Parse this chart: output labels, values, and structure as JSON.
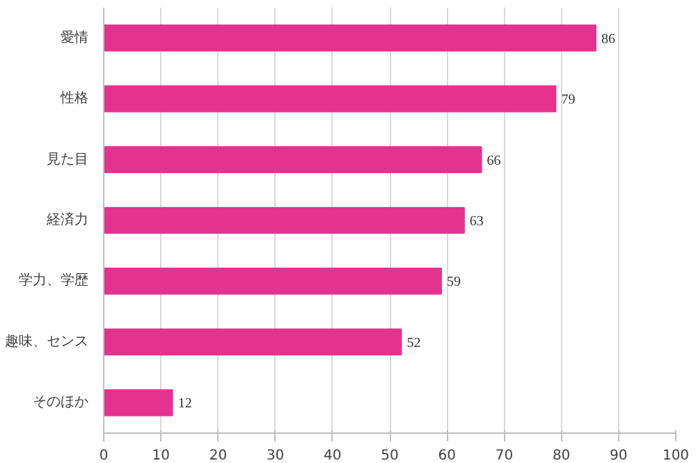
{
  "chart_data": {
    "type": "bar",
    "orientation": "horizontal",
    "categories": [
      "愛情",
      "性格",
      "見た目",
      "経済力",
      "学力、学歴",
      "趣味、センス",
      "そのほか"
    ],
    "values": [
      86,
      79,
      66,
      63,
      59,
      52,
      12
    ],
    "color": "#e3338f",
    "xlim": [
      0,
      100
    ],
    "xticks": [
      0,
      10,
      20,
      30,
      40,
      50,
      60,
      70,
      80,
      90,
      100
    ],
    "grid": "x",
    "data_labels": true
  }
}
